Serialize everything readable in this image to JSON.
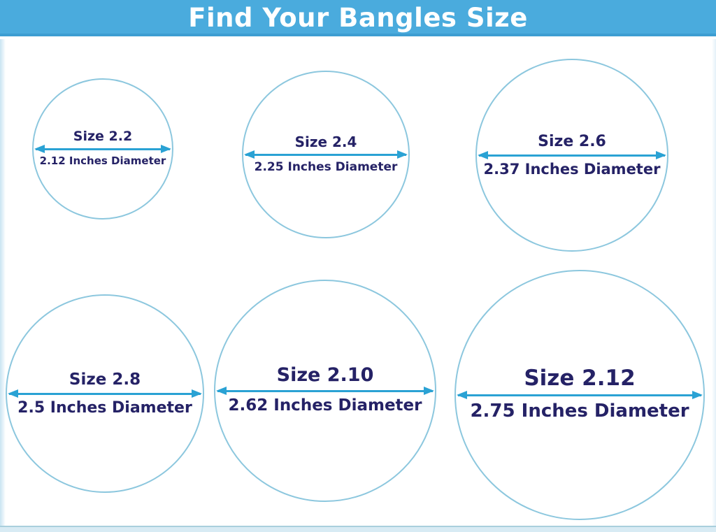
{
  "header": {
    "title": "Find Your Bangles Size"
  },
  "colors": {
    "header_bg": "#4aabdd",
    "header_edge": "#3d9ed2",
    "title_text": "#ffffff",
    "circle_stroke": "#8cc7de",
    "arrow": "#2aa2d4",
    "label_text": "#252266",
    "frame_tint": "#c9e4f2",
    "frame_bottom": "#d8ebf4",
    "frame_bottom_edge": "#a9cfdd"
  },
  "circles": [
    {
      "size": "2.2",
      "size_label": "Size 2.2",
      "diameter_inches": 2.12,
      "diameter_label": "2.12 Inches Diameter"
    },
    {
      "size": "2.4",
      "size_label": "Size 2.4",
      "diameter_inches": 2.25,
      "diameter_label": "2.25 Inches Diameter"
    },
    {
      "size": "2.6",
      "size_label": "Size 2.6",
      "diameter_inches": 2.37,
      "diameter_label": "2.37 Inches Diameter"
    },
    {
      "size": "2.8",
      "size_label": "Size 2.8",
      "diameter_inches": 2.5,
      "diameter_label": "2.5 Inches Diameter"
    },
    {
      "size": "2.10",
      "size_label": "Size 2.10",
      "diameter_inches": 2.62,
      "diameter_label": "2.62 Inches Diameter"
    },
    {
      "size": "2.12",
      "size_label": "Size 2.12",
      "diameter_inches": 2.75,
      "diameter_label": "2.75 Inches Diameter"
    }
  ]
}
